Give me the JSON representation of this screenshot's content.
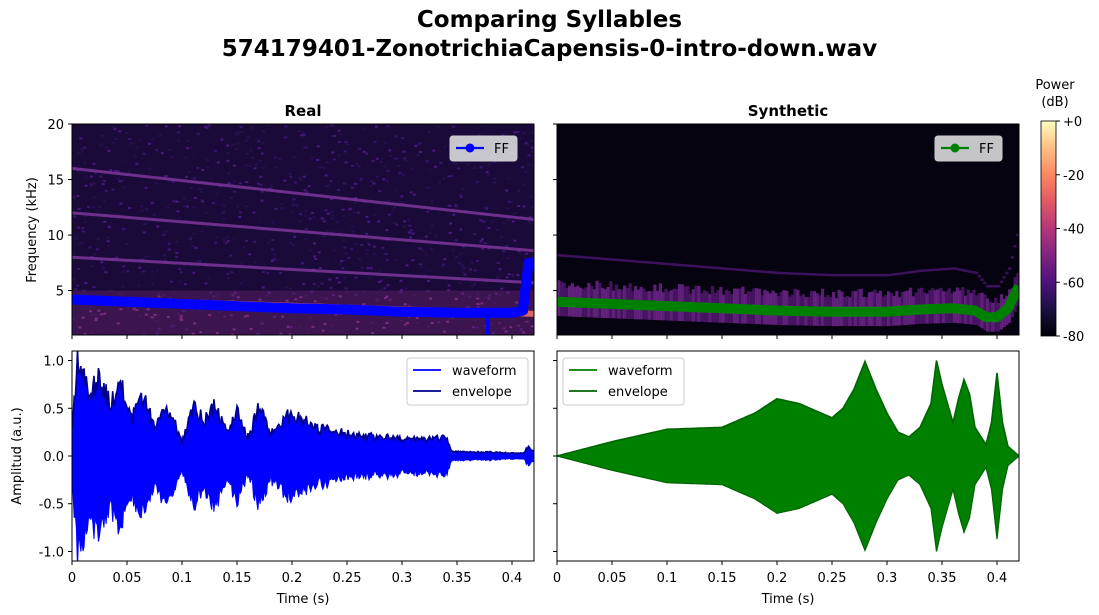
{
  "figure": {
    "title_line1": "Comparing Syllables",
    "title_line2": "574179401-ZonotrichiaCapensis-0-intro-down.wav"
  },
  "colorbar": {
    "label_line1": "Power",
    "label_line2": "(dB)",
    "ticks": [
      "+0",
      "-20",
      "-40",
      "-60",
      "-80"
    ],
    "range": [
      -80,
      0
    ],
    "colormap": "magma"
  },
  "colors": {
    "real": "#0000ff",
    "real_envelope": "#00008b",
    "synthetic": "#008000",
    "synthetic_envelope": "#006400"
  },
  "chart_data": [
    {
      "type": "heatmap",
      "panel": "real-spectrogram",
      "title": "Real",
      "ylabel": "Frequency (kHz)",
      "xlim": [
        0,
        0.42
      ],
      "ylim": [
        1,
        20
      ],
      "yticks": [
        "5",
        "10",
        "15",
        "20"
      ],
      "legend": {
        "position": "top-right",
        "entries": [
          "FF"
        ]
      },
      "harmonics_khz": [
        [
          4.3,
          2.9
        ],
        [
          8.0,
          5.7
        ],
        [
          12.0,
          8.6
        ],
        [
          16.0,
          11.4
        ]
      ],
      "series": [
        {
          "name": "FF",
          "x": [
            0,
            0.05,
            0.1,
            0.15,
            0.2,
            0.25,
            0.3,
            0.35,
            0.37,
            0.4,
            0.41,
            0.415,
            0.42
          ],
          "y": [
            4.2,
            4.0,
            3.8,
            3.6,
            3.4,
            3.3,
            3.1,
            3.0,
            3.0,
            3.0,
            3.2,
            7.5,
            7.5
          ]
        }
      ]
    },
    {
      "type": "heatmap",
      "panel": "synthetic-spectrogram",
      "title": "Synthetic",
      "xlim": [
        0,
        0.42
      ],
      "ylim": [
        1,
        20
      ],
      "legend": {
        "position": "top-right",
        "entries": [
          "FF"
        ]
      },
      "series": [
        {
          "name": "FF",
          "x": [
            0,
            0.05,
            0.1,
            0.15,
            0.2,
            0.25,
            0.3,
            0.33,
            0.36,
            0.38,
            0.39,
            0.4,
            0.41,
            0.42
          ],
          "y": [
            4.0,
            3.8,
            3.6,
            3.4,
            3.2,
            3.1,
            3.1,
            3.3,
            3.4,
            3.2,
            2.6,
            2.6,
            3.4,
            5.4
          ]
        }
      ]
    },
    {
      "type": "area",
      "panel": "real-waveform",
      "ylabel": "Amplitud (a.u.)",
      "xlabel": "Time (s)",
      "xlim": [
        0,
        0.42
      ],
      "ylim": [
        -1.1,
        1.1
      ],
      "xticks": [
        "0",
        "0.05",
        "0.1",
        "0.15",
        "0.2",
        "0.25",
        "0.3",
        "0.35",
        "0.4"
      ],
      "yticks": [
        "-1.0",
        "-0.5",
        "0.0",
        "0.5",
        "1.0"
      ],
      "legend": {
        "position": "top-right",
        "entries": [
          "waveform",
          "envelope"
        ]
      },
      "envelope": {
        "x": [
          0,
          0.005,
          0.015,
          0.025,
          0.035,
          0.045,
          0.055,
          0.065,
          0.075,
          0.085,
          0.095,
          0.1,
          0.11,
          0.12,
          0.13,
          0.14,
          0.15,
          0.16,
          0.17,
          0.18,
          0.19,
          0.2,
          0.22,
          0.24,
          0.26,
          0.28,
          0.3,
          0.32,
          0.34,
          0.345,
          0.36,
          0.38,
          0.4,
          0.41,
          0.415,
          0.42
        ],
        "y": [
          0.3,
          1.0,
          0.7,
          0.8,
          0.55,
          0.7,
          0.4,
          0.6,
          0.3,
          0.5,
          0.3,
          0.15,
          0.55,
          0.35,
          0.55,
          0.25,
          0.45,
          0.2,
          0.5,
          0.25,
          0.35,
          0.45,
          0.3,
          0.25,
          0.22,
          0.2,
          0.18,
          0.17,
          0.2,
          0.05,
          0.04,
          0.04,
          0.03,
          0.03,
          0.1,
          0.05
        ]
      }
    },
    {
      "type": "area",
      "panel": "synthetic-waveform",
      "xlabel": "Time (s)",
      "xlim": [
        0,
        0.42
      ],
      "ylim": [
        -1.1,
        1.1
      ],
      "xticks": [
        "0",
        "0.05",
        "0.1",
        "0.15",
        "0.2",
        "0.25",
        "0.3",
        "0.35",
        "0.4"
      ],
      "legend": {
        "position": "top-left",
        "entries": [
          "waveform",
          "envelope"
        ]
      },
      "envelope": {
        "x": [
          0,
          0.05,
          0.1,
          0.15,
          0.18,
          0.2,
          0.22,
          0.25,
          0.26,
          0.27,
          0.28,
          0.29,
          0.3,
          0.31,
          0.32,
          0.33,
          0.34,
          0.345,
          0.35,
          0.36,
          0.365,
          0.37,
          0.375,
          0.38,
          0.39,
          0.395,
          0.4,
          0.405,
          0.41,
          0.415,
          0.42
        ],
        "y": [
          0.0,
          0.15,
          0.28,
          0.3,
          0.45,
          0.6,
          0.55,
          0.4,
          0.5,
          0.7,
          0.99,
          0.7,
          0.45,
          0.25,
          0.2,
          0.3,
          0.55,
          1.0,
          0.75,
          0.35,
          0.6,
          0.8,
          0.65,
          0.3,
          0.12,
          0.35,
          0.87,
          0.35,
          0.1,
          0.05,
          0.0
        ]
      }
    }
  ]
}
